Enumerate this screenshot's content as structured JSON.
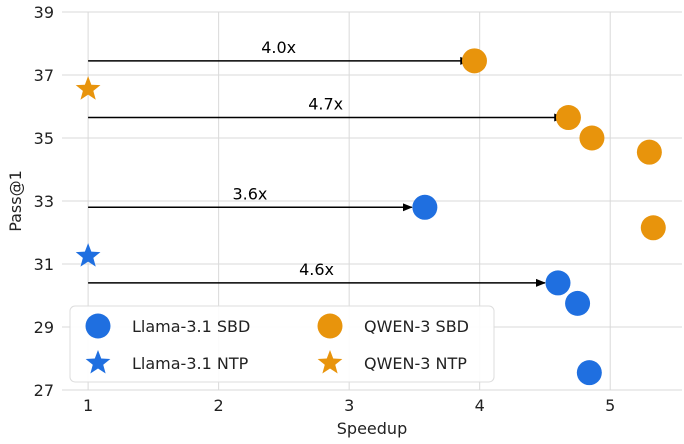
{
  "chart_data": {
    "type": "scatter",
    "xlabel": "Speedup",
    "ylabel": "Pass@1",
    "xlim": [
      0.8,
      5.55
    ],
    "ylim": [
      27,
      39
    ],
    "xticks": [
      1,
      2,
      3,
      4,
      5
    ],
    "yticks": [
      27,
      29,
      31,
      33,
      35,
      37,
      39
    ],
    "grid": true,
    "legend": {
      "placement": "bottom-left",
      "columns": 2,
      "entries": [
        {
          "label": "Llama-3.1 SBD",
          "color": "#1f6fe0",
          "marker": "circle"
        },
        {
          "label": "QWEN-3 SBD",
          "color": "#e8940c",
          "marker": "circle"
        },
        {
          "label": "Llama-3.1 NTP",
          "color": "#1f6fe0",
          "marker": "star"
        },
        {
          "label": "QWEN-3 NTP",
          "color": "#e8940c",
          "marker": "star"
        }
      ]
    },
    "series": [
      {
        "name": "Llama-3.1 SBD",
        "color": "#1f6fe0",
        "marker": "circle",
        "points": [
          [
            3.58,
            32.8
          ],
          [
            4.6,
            30.4
          ],
          [
            4.75,
            29.75
          ],
          [
            4.84,
            27.55
          ]
        ]
      },
      {
        "name": "QWEN-3 SBD",
        "color": "#e8940c",
        "marker": "circle",
        "points": [
          [
            3.96,
            37.45
          ],
          [
            4.68,
            35.65
          ],
          [
            4.86,
            35.0
          ],
          [
            5.3,
            34.55
          ],
          [
            5.33,
            32.15
          ]
        ]
      },
      {
        "name": "Llama-3.1 NTP",
        "color": "#1f6fe0",
        "marker": "star",
        "points": [
          [
            1.0,
            31.25
          ]
        ]
      },
      {
        "name": "QWEN-3 NTP",
        "color": "#e8940c",
        "marker": "star",
        "points": [
          [
            1.0,
            36.55
          ]
        ]
      }
    ],
    "annotations": [
      {
        "label": "4.0x",
        "from": [
          1.0,
          37.45
        ],
        "to": [
          3.92,
          37.45
        ]
      },
      {
        "label": "4.7x",
        "from": [
          1.0,
          35.65
        ],
        "to": [
          4.64,
          35.65
        ]
      },
      {
        "label": "3.6x",
        "from": [
          1.0,
          32.8
        ],
        "to": [
          3.48,
          32.8
        ]
      },
      {
        "label": "4.6x",
        "from": [
          1.0,
          30.4
        ],
        "to": [
          4.5,
          30.4
        ]
      }
    ]
  }
}
